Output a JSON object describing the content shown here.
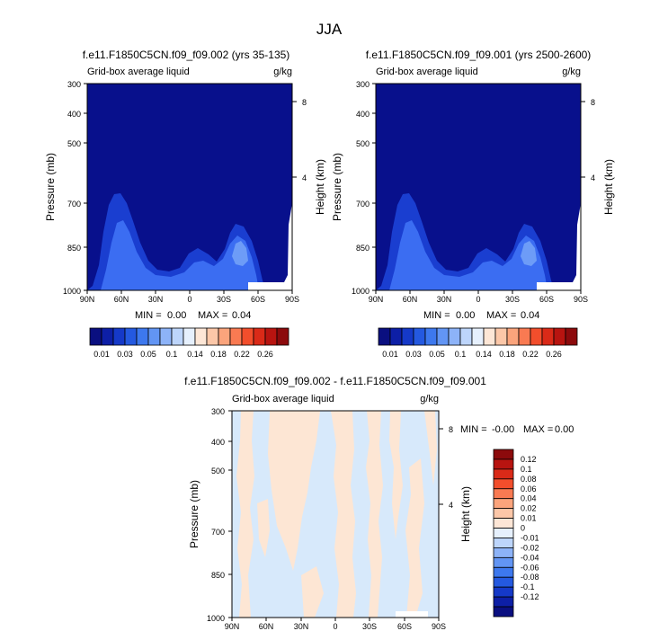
{
  "page_title": "JJA",
  "colors": {
    "fill_dark": "#08108c",
    "fill_mid": "#1a3ed0",
    "fill_bright": "#3b6df2",
    "fill_light": "#6d9cf7",
    "diff_pos": "#fde6d4",
    "diff_neg": "#d7e9fb",
    "missing": "#ffffff"
  },
  "chart_data": [
    {
      "type": "heatmap",
      "id": "top-left",
      "title": "f.e11.F1850C5CN.f09_f09.002 (yrs 35-135)",
      "left_string": "Grid-box average liquid",
      "right_string": "g/kg",
      "ylabel": "Pressure (mb)",
      "y2label": "Height (km)",
      "x_ticks": [
        "90N",
        "60N",
        "30N",
        "0",
        "30S",
        "60S",
        "90S"
      ],
      "y_ticks": [
        "300",
        "400",
        "500",
        "700",
        "850",
        "1000"
      ],
      "y2_ticks": [
        "8",
        "4"
      ],
      "min_label": "MIN =",
      "min_value": "0.00",
      "max_label": "MAX =",
      "max_value": "0.04"
    },
    {
      "type": "heatmap",
      "id": "top-right",
      "title": "f.e11.F1850C5CN.f09_f09.001 (yrs 2500-2600)",
      "left_string": "Grid-box average liquid",
      "right_string": "g/kg",
      "ylabel": "Pressure (mb)",
      "y2label": "Height (km)",
      "x_ticks": [
        "90N",
        "60N",
        "30N",
        "0",
        "30S",
        "60S",
        "90S"
      ],
      "y_ticks": [
        "300",
        "400",
        "500",
        "700",
        "850",
        "1000"
      ],
      "y2_ticks": [
        "8",
        "4"
      ],
      "min_label": "MIN =",
      "min_value": "0.00",
      "max_label": "MAX =",
      "max_value": "0.04"
    },
    {
      "type": "heatmap",
      "id": "bottom-diff",
      "title": "f.e11.F1850C5CN.f09_f09.002 - f.e11.F1850C5CN.f09_f09.001",
      "left_string": "Grid-box average liquid",
      "right_string": "g/kg",
      "ylabel": "Pressure (mb)",
      "y2label": "Height (km)",
      "x_ticks": [
        "90N",
        "60N",
        "30N",
        "0",
        "30S",
        "60S",
        "90S"
      ],
      "y_ticks": [
        "300",
        "400",
        "500",
        "700",
        "850",
        "1000"
      ],
      "y2_ticks": [
        "8",
        "4"
      ],
      "min_label": "MIN =",
      "min_value": "-0.00",
      "max_label": "MAX =",
      "max_value": "0.00"
    }
  ],
  "colorbar_top": {
    "colors": [
      "#0a0f80",
      "#0d1fa6",
      "#1539c8",
      "#2459e0",
      "#3d78ee",
      "#6295f4",
      "#8db3f8",
      "#bdd5fb",
      "#e6f0fd",
      "#fde6d6",
      "#fcc7a8",
      "#fba47c",
      "#f97a52",
      "#f24e2c",
      "#da2a18",
      "#b81410",
      "#8c0a0c"
    ],
    "labels": [
      "0.01",
      "0.03",
      "0.05",
      "0.1",
      "0.14",
      "0.18",
      "0.22",
      "0.26"
    ]
  },
  "colorbar_diff": {
    "colors": [
      "#8c0a0c",
      "#b81410",
      "#da2a18",
      "#f24e2c",
      "#f97a52",
      "#fba47c",
      "#fcc7a8",
      "#fde6d6",
      "#e6f0fd",
      "#bdd5fb",
      "#8db3f8",
      "#6295f4",
      "#3d78ee",
      "#2459e0",
      "#1539c8",
      "#0d1fa6",
      "#0a0f80"
    ],
    "labels": [
      "0.12",
      "0.1",
      "0.08",
      "0.06",
      "0.04",
      "0.02",
      "0.01",
      "0",
      "-0.01",
      "-0.02",
      "-0.04",
      "-0.06",
      "-0.08",
      "-0.1",
      "-0.12"
    ]
  }
}
